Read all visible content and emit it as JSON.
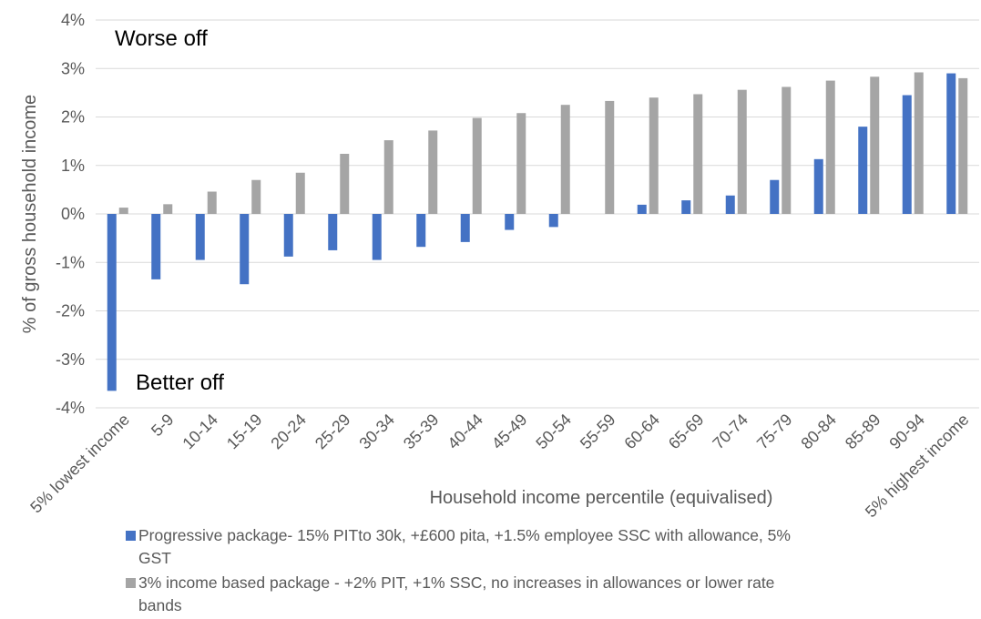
{
  "colors": {
    "series1": "#4472C4",
    "series2": "#A5A5A5",
    "grid": "#D9D9D9",
    "text": "#595959"
  },
  "chart_data": {
    "type": "bar",
    "title": "",
    "xlabel": "Household income percentile (equivalised)",
    "ylabel": "% of gross household income",
    "ylim": [
      -4,
      4
    ],
    "yticks": [
      -4,
      -3,
      -2,
      -1,
      0,
      1,
      2,
      3,
      4
    ],
    "ytick_labels": [
      "-4%",
      "-3%",
      "-2%",
      "-1%",
      "0%",
      "1%",
      "2%",
      "3%",
      "4%"
    ],
    "grid": true,
    "legend_position": "bottom",
    "categories": [
      "5% lowest income",
      "5-9",
      "10-14",
      "15-19",
      "20-24",
      "25-29",
      "30-34",
      "35-39",
      "40-44",
      "45-49",
      "50-54",
      "55-59",
      "60-64",
      "65-69",
      "70-74",
      "75-79",
      "80-84",
      "85-89",
      "90-94",
      "5% highest income"
    ],
    "series": [
      {
        "name": "Progressive package- 15% PITto 30k, +£600 pita, +1.5% employee SSC with allowance, 5% GST",
        "color": "#4472C4",
        "values": [
          -3.65,
          -1.35,
          -0.95,
          -1.45,
          -0.88,
          -0.75,
          -0.95,
          -0.68,
          -0.58,
          -0.33,
          -0.27,
          0.0,
          0.19,
          0.28,
          0.38,
          0.7,
          1.13,
          1.8,
          2.45,
          2.9
        ]
      },
      {
        "name": "3% income based package - +2% PIT, +1% SSC, no increases in allowances or lower rate bands",
        "color": "#A5A5A5",
        "values": [
          0.13,
          0.2,
          0.46,
          0.7,
          0.85,
          1.24,
          1.52,
          1.72,
          1.98,
          2.08,
          2.25,
          2.33,
          2.4,
          2.47,
          2.56,
          2.62,
          2.75,
          2.83,
          2.92,
          2.8
        ]
      }
    ],
    "annotations": {
      "top": "Worse off",
      "bottom": "Better off"
    }
  }
}
